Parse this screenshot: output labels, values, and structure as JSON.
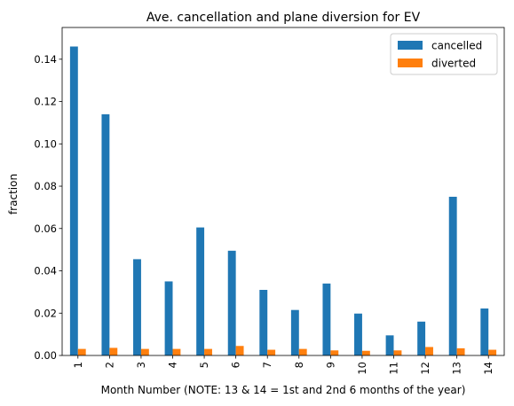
{
  "chart_data": {
    "type": "bar",
    "title": "Ave. cancellation and plane diversion for EV",
    "xlabel": "Month Number (NOTE: 13 & 14 = 1st and 2nd 6 months of the year)",
    "ylabel": "fraction",
    "categories": [
      "1",
      "2",
      "3",
      "4",
      "5",
      "6",
      "7",
      "8",
      "9",
      "10",
      "11",
      "12",
      "13",
      "14"
    ],
    "series": [
      {
        "name": "cancelled",
        "color": "#1f77b4",
        "values": [
          0.146,
          0.114,
          0.0455,
          0.035,
          0.0605,
          0.0495,
          0.031,
          0.0215,
          0.034,
          0.0198,
          0.0095,
          0.016,
          0.075,
          0.0222
        ]
      },
      {
        "name": "diverted",
        "color": "#ff7f0e",
        "values": [
          0.0031,
          0.0036,
          0.0031,
          0.0031,
          0.0031,
          0.0045,
          0.0027,
          0.0031,
          0.0024,
          0.0022,
          0.0024,
          0.004,
          0.0034,
          0.0027
        ]
      }
    ],
    "ylim": [
      0,
      0.155
    ],
    "yticks": [
      "0.00",
      "0.02",
      "0.04",
      "0.06",
      "0.08",
      "0.10",
      "0.12",
      "0.14"
    ],
    "legend_position": "top-right",
    "grid": false
  }
}
